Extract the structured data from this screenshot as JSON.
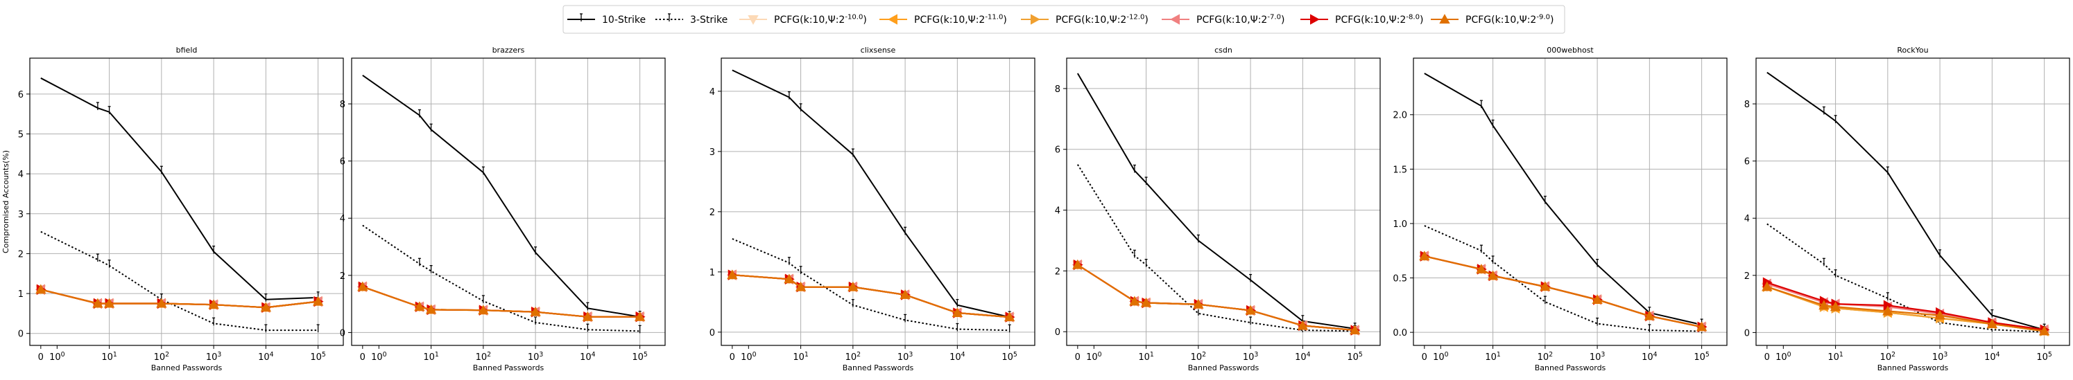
{
  "legend": {
    "position": "top-center",
    "entries": [
      {
        "key": "strike10",
        "label": "10-Strike",
        "color": "#000000",
        "dash": "solid",
        "marker": "cap"
      },
      {
        "key": "strike3",
        "label": "3-Strike",
        "color": "#000000",
        "dash": "dotted",
        "marker": "cap"
      },
      {
        "key": "pcfg10",
        "label": "PCFG(k:10,Ψ:2^{-10.0})",
        "color": "#fcd9b6",
        "dash": "solid",
        "marker": "tri-down"
      },
      {
        "key": "pcfg11",
        "label": "PCFG(k:10,Ψ:2^{-11.0})",
        "color": "#ff9f1c",
        "dash": "solid",
        "marker": "tri-left"
      },
      {
        "key": "pcfg12",
        "label": "PCFG(k:10,Ψ:2^{-12.0})",
        "color": "#f0a030",
        "dash": "solid",
        "marker": "tri-right"
      },
      {
        "key": "pcfg7",
        "label": "PCFG(k:10,Ψ:2^{-7.0})",
        "color": "#f08080",
        "dash": "solid",
        "marker": "tri-left"
      },
      {
        "key": "pcfg8",
        "label": "PCFG(k:10,Ψ:2^{-8.0})",
        "color": "#dd0000",
        "dash": "solid",
        "marker": "tri-right"
      },
      {
        "key": "pcfg9",
        "label": "PCFG(k:10,Ψ:2^{-9.0})",
        "color": "#e07000",
        "dash": "solid",
        "marker": "tri-up"
      }
    ]
  },
  "chart_data": [
    {
      "type": "line",
      "title": "bfield",
      "xlabel": "Banned Passwords",
      "ylabel": "Compromised Accounts(%)",
      "x": [
        0,
        6,
        10,
        100,
        1000,
        10000,
        100000
      ],
      "ylim": [
        -0.3,
        6.9
      ],
      "yticks": [
        0,
        1,
        2,
        3,
        4,
        5,
        6
      ],
      "grid": true,
      "series": [
        {
          "key": "strike10",
          "values": [
            6.4,
            5.65,
            5.55,
            4.05,
            2.05,
            0.85,
            0.9
          ]
        },
        {
          "key": "strike3",
          "values": [
            2.55,
            1.85,
            1.7,
            0.85,
            0.25,
            0.08,
            0.08
          ]
        },
        {
          "key": "pcfg10",
          "values": [
            1.1,
            0.75,
            0.75,
            0.75,
            0.72,
            0.65,
            0.8
          ]
        },
        {
          "key": "pcfg11",
          "values": [
            1.1,
            0.75,
            0.75,
            0.75,
            0.72,
            0.65,
            0.8
          ]
        },
        {
          "key": "pcfg12",
          "values": [
            1.1,
            0.75,
            0.75,
            0.75,
            0.72,
            0.65,
            0.8
          ]
        },
        {
          "key": "pcfg7",
          "values": [
            1.1,
            0.75,
            0.75,
            0.75,
            0.72,
            0.65,
            0.8
          ]
        },
        {
          "key": "pcfg8",
          "values": [
            1.1,
            0.75,
            0.75,
            0.75,
            0.72,
            0.65,
            0.8
          ]
        },
        {
          "key": "pcfg9",
          "values": [
            1.1,
            0.75,
            0.75,
            0.75,
            0.72,
            0.65,
            0.8
          ]
        }
      ]
    },
    {
      "type": "line",
      "title": "brazzers",
      "xlabel": "Banned Passwords",
      "ylabel": "",
      "x": [
        0,
        6,
        10,
        100,
        1000,
        10000,
        100000
      ],
      "ylim": [
        -0.45,
        9.6
      ],
      "yticks": [
        0,
        2,
        4,
        6,
        8
      ],
      "grid": true,
      "series": [
        {
          "key": "strike10",
          "values": [
            9.0,
            7.6,
            7.1,
            5.6,
            2.8,
            0.85,
            0.55
          ]
        },
        {
          "key": "strike3",
          "values": [
            3.75,
            2.4,
            2.15,
            1.1,
            0.35,
            0.1,
            0.05
          ]
        },
        {
          "key": "pcfg10",
          "values": [
            1.6,
            0.9,
            0.8,
            0.78,
            0.72,
            0.55,
            0.55
          ]
        },
        {
          "key": "pcfg11",
          "values": [
            1.6,
            0.9,
            0.8,
            0.78,
            0.72,
            0.55,
            0.55
          ]
        },
        {
          "key": "pcfg12",
          "values": [
            1.6,
            0.9,
            0.8,
            0.78,
            0.72,
            0.55,
            0.55
          ]
        },
        {
          "key": "pcfg7",
          "values": [
            1.6,
            0.9,
            0.8,
            0.78,
            0.72,
            0.55,
            0.55
          ]
        },
        {
          "key": "pcfg8",
          "values": [
            1.6,
            0.9,
            0.8,
            0.78,
            0.72,
            0.55,
            0.55
          ]
        },
        {
          "key": "pcfg9",
          "values": [
            1.6,
            0.9,
            0.8,
            0.78,
            0.72,
            0.55,
            0.55
          ]
        }
      ]
    },
    {
      "type": "line",
      "title": "clixsense",
      "xlabel": "Banned Passwords",
      "ylabel": "",
      "x": [
        0,
        6,
        10,
        100,
        1000,
        10000,
        100000
      ],
      "ylim": [
        -0.22,
        4.55
      ],
      "yticks": [
        0,
        1,
        2,
        3,
        4
      ],
      "grid": true,
      "series": [
        {
          "key": "strike10",
          "values": [
            4.35,
            3.9,
            3.7,
            2.95,
            1.65,
            0.45,
            0.25
          ]
        },
        {
          "key": "strike3",
          "values": [
            1.55,
            1.15,
            1.0,
            0.45,
            0.2,
            0.05,
            0.03
          ]
        },
        {
          "key": "pcfg10",
          "values": [
            0.95,
            0.88,
            0.75,
            0.75,
            0.62,
            0.32,
            0.25
          ]
        },
        {
          "key": "pcfg11",
          "values": [
            0.95,
            0.88,
            0.75,
            0.75,
            0.62,
            0.32,
            0.25
          ]
        },
        {
          "key": "pcfg12",
          "values": [
            0.95,
            0.88,
            0.75,
            0.75,
            0.62,
            0.32,
            0.25
          ]
        },
        {
          "key": "pcfg7",
          "values": [
            0.95,
            0.88,
            0.75,
            0.75,
            0.62,
            0.32,
            0.25
          ]
        },
        {
          "key": "pcfg8",
          "values": [
            0.95,
            0.88,
            0.75,
            0.75,
            0.62,
            0.32,
            0.25
          ]
        },
        {
          "key": "pcfg9",
          "values": [
            0.95,
            0.88,
            0.75,
            0.75,
            0.62,
            0.32,
            0.25
          ]
        }
      ]
    },
    {
      "type": "line",
      "title": "csdn",
      "xlabel": "Banned Passwords",
      "ylabel": "",
      "x": [
        0,
        6,
        10,
        100,
        1000,
        10000,
        100000
      ],
      "ylim": [
        -0.45,
        9.0
      ],
      "yticks": [
        0,
        2,
        4,
        6,
        8
      ],
      "grid": true,
      "series": [
        {
          "key": "strike10",
          "values": [
            8.5,
            5.3,
            4.9,
            3.0,
            1.7,
            0.35,
            0.1
          ]
        },
        {
          "key": "strike3",
          "values": [
            5.5,
            2.5,
            2.2,
            0.6,
            0.3,
            0.05,
            0.02
          ]
        },
        {
          "key": "pcfg10",
          "values": [
            2.2,
            1.0,
            0.95,
            0.9,
            0.7,
            0.2,
            0.05
          ]
        },
        {
          "key": "pcfg11",
          "values": [
            2.2,
            1.0,
            0.95,
            0.9,
            0.7,
            0.2,
            0.05
          ]
        },
        {
          "key": "pcfg12",
          "values": [
            2.2,
            1.0,
            0.95,
            0.9,
            0.7,
            0.2,
            0.05
          ]
        },
        {
          "key": "pcfg7",
          "values": [
            2.2,
            1.0,
            0.95,
            0.9,
            0.7,
            0.2,
            0.05
          ]
        },
        {
          "key": "pcfg8",
          "values": [
            2.2,
            1.0,
            0.95,
            0.9,
            0.7,
            0.2,
            0.05
          ]
        },
        {
          "key": "pcfg9",
          "values": [
            2.2,
            1.0,
            0.95,
            0.9,
            0.7,
            0.2,
            0.05
          ]
        }
      ]
    },
    {
      "type": "line",
      "title": "000webhost",
      "xlabel": "Banned Passwords",
      "ylabel": "",
      "x": [
        0,
        6,
        10,
        100,
        1000,
        10000,
        100000
      ],
      "ylim": [
        -0.12,
        2.52
      ],
      "yticks": [
        0.0,
        0.5,
        1.0,
        1.5,
        2.0
      ],
      "grid": true,
      "series": [
        {
          "key": "strike10",
          "values": [
            2.38,
            2.08,
            1.9,
            1.2,
            0.62,
            0.18,
            0.07
          ]
        },
        {
          "key": "strike3",
          "values": [
            0.98,
            0.75,
            0.65,
            0.28,
            0.08,
            0.02,
            0.01
          ]
        },
        {
          "key": "pcfg10",
          "values": [
            0.7,
            0.58,
            0.52,
            0.42,
            0.3,
            0.15,
            0.05
          ]
        },
        {
          "key": "pcfg11",
          "values": [
            0.7,
            0.58,
            0.52,
            0.42,
            0.3,
            0.15,
            0.05
          ]
        },
        {
          "key": "pcfg12",
          "values": [
            0.7,
            0.58,
            0.52,
            0.42,
            0.3,
            0.15,
            0.05
          ]
        },
        {
          "key": "pcfg7",
          "values": [
            0.7,
            0.58,
            0.52,
            0.42,
            0.3,
            0.15,
            0.05
          ]
        },
        {
          "key": "pcfg8",
          "values": [
            0.7,
            0.58,
            0.52,
            0.42,
            0.3,
            0.15,
            0.05
          ]
        },
        {
          "key": "pcfg9",
          "values": [
            0.7,
            0.58,
            0.52,
            0.42,
            0.3,
            0.15,
            0.05
          ]
        }
      ]
    },
    {
      "type": "line",
      "title": "RockYou",
      "xlabel": "Banned Passwords",
      "ylabel": "",
      "x": [
        0,
        6,
        10,
        100,
        1000,
        10000,
        100000
      ],
      "ylim": [
        -0.45,
        9.6
      ],
      "yticks": [
        0,
        2,
        4,
        6,
        8
      ],
      "grid": true,
      "series": [
        {
          "key": "strike10",
          "values": [
            9.1,
            7.7,
            7.4,
            5.6,
            2.7,
            0.6,
            0.1
          ]
        },
        {
          "key": "strike3",
          "values": [
            3.8,
            2.4,
            2.0,
            1.2,
            0.35,
            0.1,
            0.02
          ]
        },
        {
          "key": "pcfg10",
          "values": [
            1.6,
            0.9,
            0.85,
            0.7,
            0.5,
            0.3,
            0.05
          ]
        },
        {
          "key": "pcfg11",
          "values": [
            1.6,
            0.9,
            0.85,
            0.7,
            0.5,
            0.3,
            0.05
          ]
        },
        {
          "key": "pcfg12",
          "values": [
            1.6,
            0.9,
            0.85,
            0.7,
            0.5,
            0.3,
            0.05
          ]
        },
        {
          "key": "pcfg7",
          "values": [
            1.7,
            1.05,
            1.0,
            0.9,
            0.65,
            0.35,
            0.1
          ]
        },
        {
          "key": "pcfg8",
          "values": [
            1.75,
            1.1,
            1.0,
            0.95,
            0.7,
            0.35,
            0.1
          ]
        },
        {
          "key": "pcfg9",
          "values": [
            1.6,
            0.95,
            0.9,
            0.75,
            0.6,
            0.3,
            0.05
          ]
        }
      ]
    }
  ]
}
